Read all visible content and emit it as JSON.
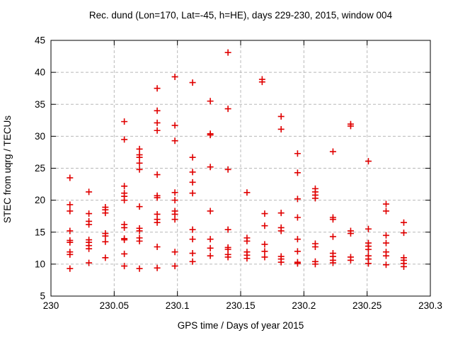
{
  "chart_data": {
    "type": "scatter",
    "title": "Rec. dund (Lon=170, Lat=-45, h=HE), days 229-230, 2015, window 004",
    "xlabel": "GPS time / Days of year 2015",
    "ylabel": "STEC from uqrg / TECUs",
    "xlim": [
      230,
      230.3
    ],
    "ylim": [
      5,
      45
    ],
    "x_ticks": [
      230,
      230.05,
      230.1,
      230.15,
      230.2,
      230.25,
      230.3
    ],
    "x_tick_labels": [
      "230",
      "230.05",
      "230.1",
      "230.15",
      "230.2",
      "230.25",
      "230.3"
    ],
    "y_ticks": [
      5,
      10,
      15,
      20,
      25,
      30,
      35,
      40,
      45
    ],
    "y_tick_labels": [
      "5",
      "10",
      "15",
      "20",
      "25",
      "30",
      "35",
      "40",
      "45"
    ],
    "grid": true,
    "legend_position": "none",
    "marker_style": "plus",
    "marker_color": "#e00000",
    "grid_color": "#b8b8b8",
    "axis_color": "#000000",
    "background_color": "#ffffff",
    "series": [
      {
        "name": "STEC from uqrg",
        "points": [
          [
            230.015,
            23.5
          ],
          [
            230.015,
            19.3
          ],
          [
            230.015,
            18.3
          ],
          [
            230.015,
            15.2
          ],
          [
            230.015,
            13.7
          ],
          [
            230.015,
            13.4
          ],
          [
            230.015,
            11.9
          ],
          [
            230.015,
            11.5
          ],
          [
            230.015,
            9.3
          ],
          [
            230.03,
            21.3
          ],
          [
            230.03,
            17.9
          ],
          [
            230.03,
            16.7
          ],
          [
            230.03,
            16.2
          ],
          [
            230.03,
            13.8
          ],
          [
            230.03,
            13.4
          ],
          [
            230.03,
            12.9
          ],
          [
            230.03,
            12.4
          ],
          [
            230.03,
            10.2
          ],
          [
            230.043,
            18.9
          ],
          [
            230.043,
            18.5
          ],
          [
            230.043,
            18.0
          ],
          [
            230.043,
            14.8
          ],
          [
            230.043,
            14.4
          ],
          [
            230.043,
            13.5
          ],
          [
            230.043,
            11.0
          ],
          [
            230.058,
            32.3
          ],
          [
            230.058,
            29.5
          ],
          [
            230.058,
            22.2
          ],
          [
            230.058,
            21.1
          ],
          [
            230.058,
            20.6
          ],
          [
            230.058,
            20.0
          ],
          [
            230.058,
            16.2
          ],
          [
            230.058,
            15.7
          ],
          [
            230.058,
            14.0
          ],
          [
            230.058,
            13.8
          ],
          [
            230.058,
            11.6
          ],
          [
            230.058,
            9.7
          ],
          [
            230.07,
            28.0
          ],
          [
            230.07,
            27.1
          ],
          [
            230.07,
            26.7
          ],
          [
            230.07,
            25.8
          ],
          [
            230.07,
            24.8
          ],
          [
            230.07,
            19.0
          ],
          [
            230.07,
            15.6
          ],
          [
            230.07,
            15.2
          ],
          [
            230.07,
            14.1
          ],
          [
            230.07,
            13.6
          ],
          [
            230.07,
            9.3
          ],
          [
            230.084,
            37.5
          ],
          [
            230.084,
            34.0
          ],
          [
            230.084,
            32.1
          ],
          [
            230.084,
            30.9
          ],
          [
            230.084,
            24.0
          ],
          [
            230.084,
            20.7
          ],
          [
            230.084,
            20.4
          ],
          [
            230.084,
            17.8
          ],
          [
            230.084,
            17.0
          ],
          [
            230.084,
            16.5
          ],
          [
            230.084,
            12.7
          ],
          [
            230.084,
            9.4
          ],
          [
            230.098,
            39.3
          ],
          [
            230.098,
            31.7
          ],
          [
            230.098,
            29.3
          ],
          [
            230.098,
            21.2
          ],
          [
            230.098,
            20.0
          ],
          [
            230.098,
            18.3
          ],
          [
            230.098,
            17.8
          ],
          [
            230.098,
            17.0
          ],
          [
            230.098,
            11.9
          ],
          [
            230.098,
            9.7
          ],
          [
            230.112,
            38.4
          ],
          [
            230.112,
            26.7
          ],
          [
            230.112,
            24.4
          ],
          [
            230.112,
            22.8
          ],
          [
            230.112,
            21.1
          ],
          [
            230.112,
            15.4
          ],
          [
            230.112,
            13.9
          ],
          [
            230.112,
            11.7
          ],
          [
            230.112,
            10.4
          ],
          [
            230.126,
            35.5
          ],
          [
            230.126,
            30.4
          ],
          [
            230.126,
            30.2
          ],
          [
            230.126,
            25.2
          ],
          [
            230.126,
            18.3
          ],
          [
            230.126,
            13.9
          ],
          [
            230.126,
            12.5
          ],
          [
            230.126,
            11.3
          ],
          [
            230.14,
            43.1
          ],
          [
            230.14,
            34.3
          ],
          [
            230.14,
            24.8
          ],
          [
            230.14,
            15.4
          ],
          [
            230.14,
            12.6
          ],
          [
            230.14,
            12.3
          ],
          [
            230.14,
            11.5
          ],
          [
            230.14,
            11.1
          ],
          [
            230.155,
            21.2
          ],
          [
            230.155,
            14.1
          ],
          [
            230.155,
            13.6
          ],
          [
            230.155,
            11.9
          ],
          [
            230.155,
            11.4
          ],
          [
            230.155,
            10.9
          ],
          [
            230.167,
            38.9
          ],
          [
            230.167,
            38.5
          ],
          [
            230.169,
            17.9
          ],
          [
            230.169,
            16.0
          ],
          [
            230.169,
            13.1
          ],
          [
            230.169,
            12.0
          ],
          [
            230.169,
            11.1
          ],
          [
            230.182,
            33.1
          ],
          [
            230.182,
            31.1
          ],
          [
            230.182,
            18.0
          ],
          [
            230.182,
            15.7
          ],
          [
            230.182,
            15.2
          ],
          [
            230.182,
            11.2
          ],
          [
            230.182,
            10.8
          ],
          [
            230.182,
            10.3
          ],
          [
            230.195,
            27.3
          ],
          [
            230.195,
            24.3
          ],
          [
            230.195,
            20.2
          ],
          [
            230.195,
            17.3
          ],
          [
            230.195,
            13.9
          ],
          [
            230.195,
            12.0
          ],
          [
            230.195,
            10.3
          ],
          [
            230.195,
            10.1
          ],
          [
            230.209,
            21.8
          ],
          [
            230.209,
            21.3
          ],
          [
            230.209,
            20.8
          ],
          [
            230.209,
            20.3
          ],
          [
            230.209,
            13.2
          ],
          [
            230.209,
            12.7
          ],
          [
            230.209,
            10.4
          ],
          [
            230.209,
            10.0
          ],
          [
            230.223,
            27.6
          ],
          [
            230.223,
            17.3
          ],
          [
            230.223,
            17.0
          ],
          [
            230.223,
            14.3
          ],
          [
            230.223,
            11.7
          ],
          [
            230.223,
            11.2
          ],
          [
            230.223,
            10.6
          ],
          [
            230.223,
            10.2
          ],
          [
            230.237,
            31.9
          ],
          [
            230.237,
            31.6
          ],
          [
            230.237,
            15.2
          ],
          [
            230.237,
            14.8
          ],
          [
            230.237,
            11.1
          ],
          [
            230.237,
            10.6
          ],
          [
            230.251,
            26.1
          ],
          [
            230.251,
            15.5
          ],
          [
            230.251,
            13.3
          ],
          [
            230.251,
            12.8
          ],
          [
            230.251,
            12.3
          ],
          [
            230.251,
            11.3
          ],
          [
            230.251,
            10.8
          ],
          [
            230.251,
            10.1
          ],
          [
            230.265,
            19.4
          ],
          [
            230.265,
            18.3
          ],
          [
            230.265,
            14.5
          ],
          [
            230.265,
            13.3
          ],
          [
            230.265,
            11.9
          ],
          [
            230.265,
            11.3
          ],
          [
            230.265,
            9.9
          ],
          [
            230.279,
            16.5
          ],
          [
            230.279,
            14.9
          ],
          [
            230.279,
            11.0
          ],
          [
            230.279,
            10.6
          ],
          [
            230.279,
            10.1
          ],
          [
            230.279,
            9.6
          ]
        ]
      }
    ]
  }
}
